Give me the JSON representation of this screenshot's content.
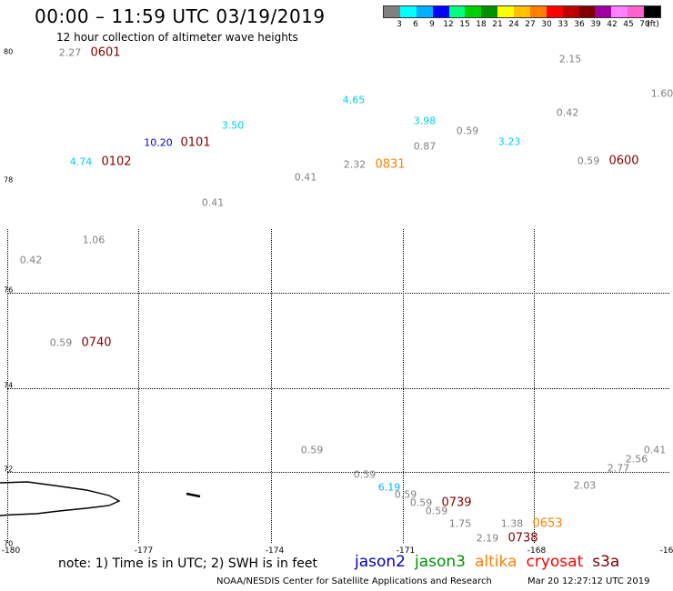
{
  "header": {
    "title": "00:00 – 11:59 UTC 03/19/2019",
    "subtitle": "12 hour collection of altimeter wave heights"
  },
  "legend": {
    "colors": [
      "#808080",
      "#00ffff",
      "#00b0ff",
      "#0000ff",
      "#00ff80",
      "#00d000",
      "#009000",
      "#ffff00",
      "#ffc000",
      "#ff8000",
      "#ff0000",
      "#c00000",
      "#800000",
      "#a000a0",
      "#ff80ff",
      "#ff60d0",
      "#000000"
    ],
    "labels": [
      "3",
      "6",
      "9",
      "12",
      "15",
      "18",
      "21",
      "24",
      "27",
      "30",
      "33",
      "36",
      "39",
      "42",
      "45",
      "70",
      "(ft)"
    ]
  },
  "map": {
    "lat_labels": [
      "80",
      "78",
      "76",
      "74",
      "72",
      "70"
    ],
    "lon_labels": [
      "-180",
      "-177",
      "-174",
      "-171",
      "-168",
      "-16"
    ],
    "coastline": "landmass"
  },
  "observations": [
    {
      "text": "2.27",
      "color": "#808080"
    },
    {
      "text": "0601",
      "color": "#800000",
      "kind": "time"
    },
    {
      "text": "2.15",
      "color": "#808080"
    },
    {
      "text": "1.60",
      "color": "#808080"
    },
    {
      "text": "4.65",
      "color": "#00ccee"
    },
    {
      "text": "3.50",
      "color": "#00ccee"
    },
    {
      "text": "3.98",
      "color": "#00ccee"
    },
    {
      "text": "0.59",
      "color": "#808080"
    },
    {
      "text": "0.42",
      "color": "#808080"
    },
    {
      "text": "10.20",
      "color": "#0000c0"
    },
    {
      "text": "0101",
      "color": "#800000",
      "kind": "time"
    },
    {
      "text": "0.87",
      "color": "#808080"
    },
    {
      "text": "3.23",
      "color": "#00ccee"
    },
    {
      "text": "4.74",
      "color": "#00ccee"
    },
    {
      "text": "0102",
      "color": "#800000",
      "kind": "time"
    },
    {
      "text": "2.32",
      "color": "#808080"
    },
    {
      "text": "0831",
      "color": "#ff8000",
      "kind": "time"
    },
    {
      "text": "0.59",
      "color": "#808080"
    },
    {
      "text": "0600",
      "color": "#800000",
      "kind": "time"
    },
    {
      "text": "0.41",
      "color": "#808080"
    },
    {
      "text": "0.41",
      "color": "#808080"
    },
    {
      "text": "1.06",
      "color": "#808080"
    },
    {
      "text": "0.42",
      "color": "#808080"
    },
    {
      "text": "0.59",
      "color": "#808080"
    },
    {
      "text": "0740",
      "color": "#800000",
      "kind": "time"
    },
    {
      "text": "0.59",
      "color": "#808080"
    },
    {
      "text": "0.41",
      "color": "#808080"
    },
    {
      "text": "2.56",
      "color": "#808080"
    },
    {
      "text": "2.77",
      "color": "#808080"
    },
    {
      "text": "0.59",
      "color": "#808080"
    },
    {
      "text": "6.19",
      "color": "#00b0ff"
    },
    {
      "text": "2.03",
      "color": "#808080"
    },
    {
      "text": "0.59",
      "color": "#808080"
    },
    {
      "text": "0.59",
      "color": "#808080"
    },
    {
      "text": "0739",
      "color": "#800000",
      "kind": "time"
    },
    {
      "text": "0.59",
      "color": "#808080"
    },
    {
      "text": "1.75",
      "color": "#808080"
    },
    {
      "text": "1.38",
      "color": "#808080"
    },
    {
      "text": "0653",
      "color": "#ff8000",
      "kind": "time"
    },
    {
      "text": "2.19",
      "color": "#808080"
    },
    {
      "text": "0738",
      "color": "#800000",
      "kind": "time"
    }
  ],
  "footer": {
    "note": "note: 1) Time is in UTC; 2) SWH is in feet",
    "satellites": [
      {
        "name": "jason2",
        "color": "#0000c0"
      },
      {
        "name": "jason3",
        "color": "#009000"
      },
      {
        "name": "altika",
        "color": "#ff8000"
      },
      {
        "name": "cryosat",
        "color": "#ff0000"
      },
      {
        "name": "s3a",
        "color": "#800000"
      }
    ],
    "credit": "NOAA/NESDIS Center for Satellite Applications and Research",
    "timestamp": "Mar 20 12:27:12 UTC 2019"
  }
}
